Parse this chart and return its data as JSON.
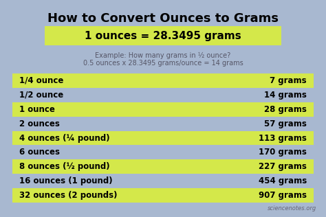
{
  "title": "How to Convert Ounces to Grams",
  "formula_text": "1 ounces = 28.3495 grams",
  "example_line1": "Example: How many grams in ½ ounce?",
  "example_line2": "0.5 ounces x 28.3495 grams/ounce = 14 grams",
  "watermark": "sciencenotes.org",
  "bg_color": "#a8b8d0",
  "yellow_color": "#d4e84a",
  "table_rows": [
    [
      "1/4 ounce",
      "7 grams",
      true
    ],
    [
      "1/2 ounce",
      "14 grams",
      false
    ],
    [
      "1 ounce",
      "28 grams",
      true
    ],
    [
      "2 ounces",
      "57 grams",
      false
    ],
    [
      "4 ounces (¼ pound)",
      "113 grams",
      true
    ],
    [
      "6 ounces",
      "170 grams",
      false
    ],
    [
      "8 ounces (½ pound)",
      "227 grams",
      true
    ],
    [
      "16 ounces (1 pound)",
      "454 grams",
      false
    ],
    [
      "32 ounces (2 pounds)",
      "907 grams",
      true
    ]
  ],
  "title_fontsize": 13,
  "formula_fontsize": 11,
  "example_fontsize": 7,
  "table_fontsize": 8.5,
  "watermark_fontsize": 6
}
